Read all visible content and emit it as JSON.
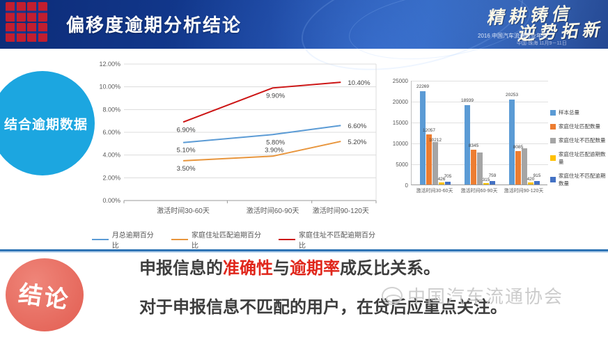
{
  "header": {
    "title": "偏移度逾期分析结论",
    "slogan_line1": "精耕铸信",
    "slogan_line2": "逆势拓新",
    "event_name": "2016 中国汽车流通行业年会",
    "event_info": "中国·珠海  11月9－11日",
    "seal_icon": "red-seal-stamp"
  },
  "badges": {
    "left_circle_label": "结合逾期数据",
    "conclusion_circle_label": "结论"
  },
  "chart_data": [
    {
      "type": "line",
      "categories": [
        "激活时间30-60天",
        "激活时间60-90天",
        "激活时间90-120天"
      ],
      "ylim": [
        0,
        12
      ],
      "ytick_values": [
        0,
        2,
        4,
        6,
        8,
        10,
        12
      ],
      "ytick_labels": [
        "0.00%",
        "2.00%",
        "4.00%",
        "6.00%",
        "8.00%",
        "10.00%",
        "12.00%"
      ],
      "grid": "horizontal",
      "legend_position": "bottom",
      "series": [
        {
          "name": "月总逾期百分比",
          "color": "#5b9bd5",
          "values": [
            5.1,
            5.8,
            6.6
          ],
          "labels": [
            "5.10%",
            "5.80%",
            "6.60%"
          ]
        },
        {
          "name": "家庭住址匹配逾期百分比",
          "color": "#e8953c",
          "values": [
            3.5,
            3.9,
            5.2
          ],
          "labels": [
            "3.50%",
            "3.90%",
            "5.20%"
          ],
          "mid_label_above": true
        },
        {
          "name": "家庭住址不匹配逾期百分比",
          "color": "#cc1414",
          "values": [
            6.9,
            9.9,
            10.4
          ],
          "labels": [
            "6.90%",
            "9.90%",
            "10.40%"
          ]
        }
      ]
    },
    {
      "type": "bar",
      "categories": [
        "激活时间30-60天",
        "激活时间60-90天",
        "激活时间90-120天"
      ],
      "ylim": [
        0,
        25000
      ],
      "ytick_values": [
        0,
        5000,
        10000,
        15000,
        20000,
        25000
      ],
      "ytick_labels": [
        "0",
        "5000",
        "10000",
        "15000",
        "20000",
        "25000"
      ],
      "grid": "horizontal",
      "legend_position": "right",
      "series": [
        {
          "name": "样本总量",
          "color": "#5b9bd5",
          "values": [
            22269,
            18939,
            20253
          ],
          "labels": [
            "22269",
            "18939",
            "20253"
          ]
        },
        {
          "name": "家庭住址匹配数量",
          "color": "#ed7d31",
          "values": [
            12057,
            8345,
            8085
          ],
          "labels": [
            "12057",
            "8345",
            "8085"
          ]
        },
        {
          "name": "家庭住址不匹配数量",
          "color": "#a5a5a5",
          "values": [
            10212,
            7700,
            8700
          ],
          "labels": [
            "10212",
            "",
            ""
          ]
        },
        {
          "name": "家庭住址匹配逾期数量",
          "color": "#ffc000",
          "values": [
            426,
            315,
            420
          ],
          "labels": [
            "426",
            "315",
            "420"
          ]
        },
        {
          "name": "家庭住址不匹配逾期数量",
          "color": "#4472c4",
          "values": [
            705,
            759,
            915
          ],
          "labels": [
            "705",
            "759",
            "915"
          ]
        }
      ]
    }
  ],
  "conclusion": {
    "line1_parts": [
      {
        "text": "申报信息的",
        "red": false
      },
      {
        "text": "准确性",
        "red": true
      },
      {
        "text": "与",
        "red": false
      },
      {
        "text": "逾期率",
        "red": true
      },
      {
        "text": "成反比关系。",
        "red": false
      }
    ],
    "line2": "对于申报信息不匹配的用户，在贷后应重点关注。"
  },
  "watermark": {
    "text": "中国汽车流通协会",
    "icon": "association-logo"
  }
}
